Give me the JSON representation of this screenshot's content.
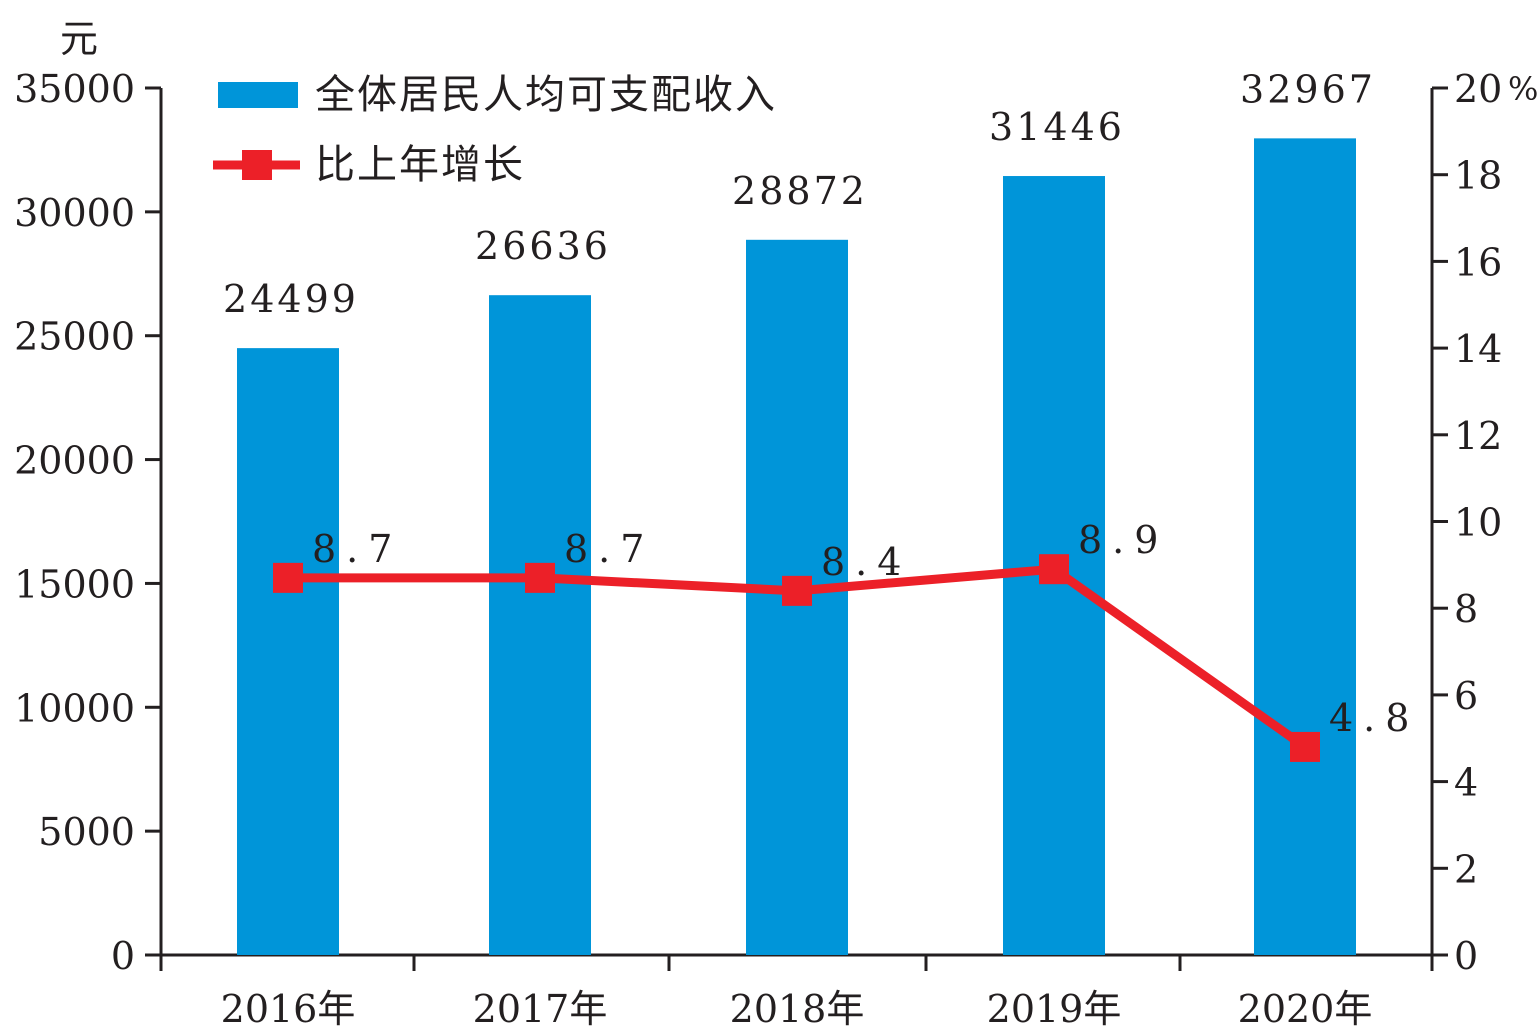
{
  "chart_data": {
    "type": "bar",
    "categories": [
      "2016年",
      "2017年",
      "2018年",
      "2019年",
      "2020年"
    ],
    "y_unit_left": "元",
    "y_unit_right": "%",
    "ylim_left": [
      0,
      35000
    ],
    "ylim_right": [
      0,
      20
    ],
    "left_ticks": [
      "0",
      "5000",
      "10000",
      "15000",
      "20000",
      "25000",
      "30000",
      "35000"
    ],
    "right_ticks": [
      "0",
      "2",
      "4",
      "6",
      "8",
      "10",
      "12",
      "14",
      "16",
      "18",
      "20"
    ],
    "grid": false,
    "legend_position": "top-left",
    "series": [
      {
        "name": "全体居民人均可支配收入",
        "type": "bar",
        "axis": "left",
        "color": "#0095d9",
        "values": [
          24499,
          26636,
          28872,
          31446,
          32967
        ],
        "labels": [
          "24499",
          "26636",
          "28872",
          "31446",
          "32967"
        ]
      },
      {
        "name": "比上年增长",
        "type": "line",
        "axis": "right",
        "color": "#ec2028",
        "values": [
          8.7,
          8.7,
          8.4,
          8.9,
          4.8
        ],
        "labels": [
          "8.7",
          "8.7",
          "8.4",
          "8.9",
          "4.8"
        ]
      }
    ]
  }
}
